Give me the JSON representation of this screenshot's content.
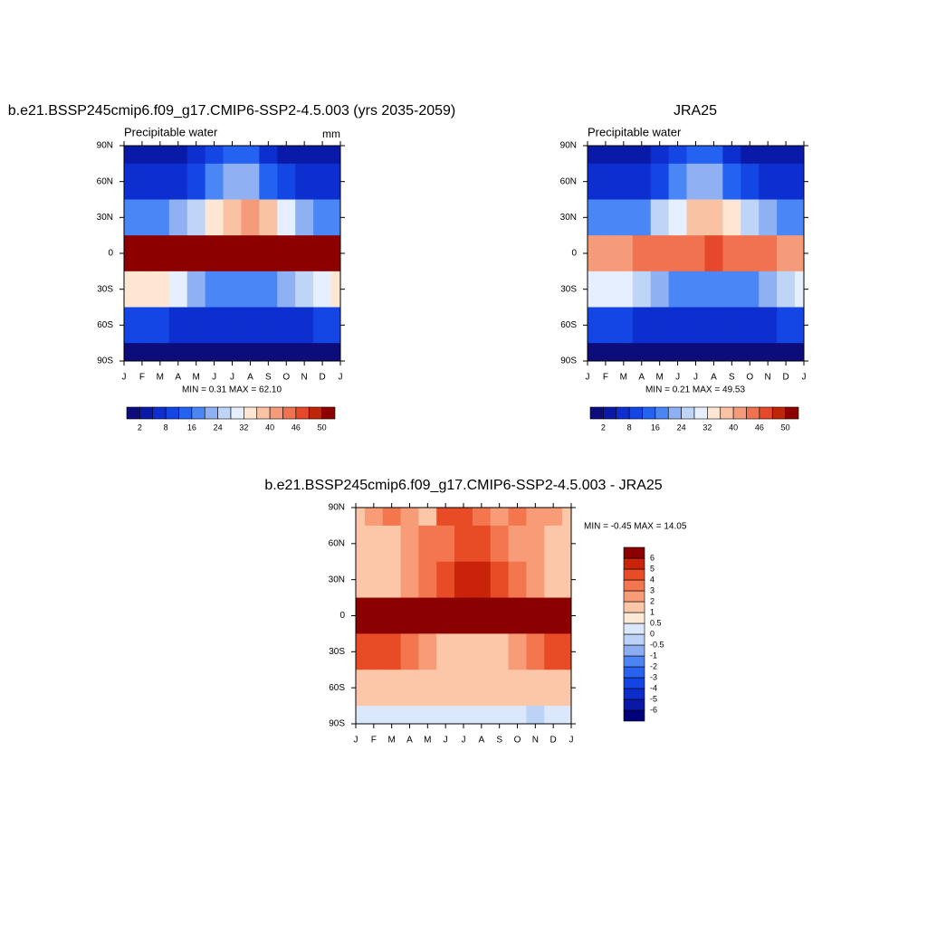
{
  "chart_data": [
    {
      "type": "contour",
      "title": "b.e21.BSSP245cmip6.f09_g17.CMIP6-SSP2-4.5.003 (yrs 2035-2059)",
      "subtitle": "Precipitable water",
      "units": "mm",
      "stats": "MIN =   0.31 MAX =  62.10",
      "categories": [
        "J",
        "F",
        "M",
        "A",
        "M",
        "J",
        "J",
        "A",
        "S",
        "O",
        "N",
        "D",
        "J"
      ],
      "ylim": [
        -90,
        90
      ],
      "yticks": [
        {
          "value": 90,
          "label": "90N"
        },
        {
          "value": 60,
          "label": "60N"
        },
        {
          "value": 30,
          "label": "30N"
        },
        0,
        {
          "value": -30,
          "label": "30S"
        },
        {
          "value": -60,
          "label": "60S"
        },
        {
          "value": -90,
          "label": "90S"
        }
      ],
      "y": [
        90,
        60,
        30,
        0,
        -30,
        -60,
        -90
      ],
      "z": [
        [
          2,
          2,
          2,
          3,
          5,
          9,
          13,
          12,
          7,
          4,
          3,
          2,
          2
        ],
        [
          5,
          5,
          6,
          7,
          11,
          17,
          22,
          20,
          14,
          9,
          7,
          5,
          5
        ],
        [
          18,
          17,
          18,
          20,
          25,
          32,
          38,
          40,
          36,
          28,
          22,
          19,
          18
        ],
        [
          50,
          50,
          50,
          50,
          52,
          55,
          57,
          57,
          55,
          53,
          51,
          50,
          50
        ],
        [
          34,
          35,
          33,
          28,
          23,
          19,
          17,
          17,
          18,
          21,
          26,
          31,
          34
        ],
        [
          9,
          9,
          8,
          7,
          6,
          5,
          5,
          5,
          5,
          6,
          7,
          8,
          9
        ],
        [
          1,
          1,
          1,
          1,
          0.5,
          0.5,
          0.5,
          0.5,
          0.5,
          1,
          1,
          1,
          1
        ]
      ],
      "colorbar": {
        "orientation": "horizontal",
        "colors": [
          "#0c0c7a",
          "#0a1aa8",
          "#0d2fd0",
          "#1446e6",
          "#2463f2",
          "#4a86f5",
          "#8fb1f3",
          "#bfd5f7",
          "#e6efff",
          "#fde6d2",
          "#f9c2a3",
          "#f59b7a",
          "#f07250",
          "#e5482a",
          "#c02509",
          "#8c0000"
        ],
        "labels": [
          2,
          8,
          16,
          24,
          32,
          40,
          46,
          50
        ]
      }
    },
    {
      "type": "contour",
      "title": "JRA25",
      "subtitle": "Precipitable water",
      "stats": "MIN =   0.21 MAX =  49.53",
      "categories": [
        "J",
        "F",
        "M",
        "A",
        "M",
        "J",
        "J",
        "A",
        "S",
        "O",
        "N",
        "D",
        "J"
      ],
      "ylim": [
        -90,
        90
      ],
      "yticks": [
        {
          "value": 90,
          "label": "90N"
        },
        {
          "value": 60,
          "label": "60N"
        },
        {
          "value": 30,
          "label": "30N"
        },
        0,
        {
          "value": -30,
          "label": "30S"
        },
        {
          "value": -60,
          "label": "60S"
        },
        {
          "value": -90,
          "label": "90S"
        }
      ],
      "y": [
        90,
        60,
        30,
        0,
        -30,
        -60,
        -90
      ],
      "z": [
        [
          2,
          2,
          2,
          3,
          5,
          9,
          14,
          12,
          7,
          4,
          3,
          2,
          2
        ],
        [
          5,
          5,
          5,
          7,
          11,
          17,
          22,
          20,
          14,
          9,
          6,
          5,
          5
        ],
        [
          17,
          16,
          17,
          19,
          24,
          31,
          37,
          38,
          34,
          27,
          21,
          18,
          17
        ],
        [
          42,
          42,
          42,
          43,
          44,
          44,
          45,
          46,
          45,
          44,
          43,
          42,
          42
        ],
        [
          30,
          30,
          28,
          25,
          21,
          18,
          16,
          16,
          17,
          19,
          23,
          27,
          30
        ],
        [
          9,
          9,
          8,
          7,
          6,
          5,
          5,
          5,
          5,
          6,
          7,
          8,
          9
        ],
        [
          1,
          1,
          1,
          1,
          0.5,
          0.5,
          0.5,
          0.5,
          0.5,
          1,
          1,
          1,
          1
        ]
      ],
      "colorbar": {
        "orientation": "horizontal",
        "colors": [
          "#0c0c7a",
          "#0a1aa8",
          "#0d2fd0",
          "#1446e6",
          "#2463f2",
          "#4a86f5",
          "#8fb1f3",
          "#bfd5f7",
          "#e6efff",
          "#fde6d2",
          "#f9c2a3",
          "#f59b7a",
          "#f07250",
          "#e5482a",
          "#c02509",
          "#8c0000"
        ],
        "labels": [
          2,
          8,
          16,
          24,
          32,
          40,
          46,
          50
        ]
      }
    },
    {
      "type": "contour",
      "title": "b.e21.BSSP245cmip6.f09_g17.CMIP6-SSP2-4.5.003 - JRA25",
      "stats": "MIN =  -0.45 MAX =  14.05",
      "categories": [
        "J",
        "F",
        "M",
        "A",
        "M",
        "J",
        "J",
        "A",
        "S",
        "O",
        "N",
        "D",
        "J"
      ],
      "ylim": [
        -90,
        90
      ],
      "yticks": [
        {
          "value": 90,
          "label": "90N"
        },
        {
          "value": 60,
          "label": "60N"
        },
        {
          "value": 30,
          "label": "30N"
        },
        0,
        {
          "value": -30,
          "label": "30S"
        },
        {
          "value": -60,
          "label": "60S"
        },
        {
          "value": -90,
          "label": "90S"
        }
      ],
      "y": [
        90,
        60,
        30,
        0,
        -30,
        -60,
        -90
      ],
      "z": [
        [
          1.5,
          2,
          3,
          2,
          1.5,
          4,
          4.5,
          3,
          2,
          3,
          2,
          2,
          1.5
        ],
        [
          1.5,
          1.5,
          1.5,
          2,
          3,
          3,
          4,
          4,
          3,
          2,
          2,
          1.5,
          1.5
        ],
        [
          1,
          1.5,
          1.5,
          2,
          3,
          4,
          5,
          5,
          4,
          3,
          2,
          1.5,
          1
        ],
        [
          8,
          8,
          8,
          8,
          8,
          10,
          12,
          12,
          10,
          8,
          8,
          8,
          8
        ],
        [
          4,
          4,
          4,
          3,
          2,
          1.5,
          1.5,
          1.5,
          1.5,
          2,
          3,
          4,
          4
        ],
        [
          1.5,
          1.5,
          1.5,
          1.5,
          1.5,
          1.5,
          1.5,
          1.5,
          1.5,
          1.5,
          1.5,
          1.5,
          1.5
        ],
        [
          0.3,
          0.3,
          0.3,
          0.3,
          0.3,
          0.3,
          0.3,
          0.3,
          0.3,
          0.3,
          -0.2,
          0.3,
          0.3
        ]
      ],
      "colorbar": {
        "orientation": "vertical",
        "colors": [
          "#00007a",
          "#0a18a6",
          "#0c2ccb",
          "#1444e3",
          "#2a62f0",
          "#4d84f4",
          "#8dadf3",
          "#bcd2f7",
          "#dbe8fb",
          "#fde9d6",
          "#fbc7a8",
          "#f79c76",
          "#f3764e",
          "#e84c26",
          "#c9230a",
          "#8b0000"
        ],
        "labels": [
          -6,
          -5,
          -4,
          -3,
          -2,
          -1,
          -0.5,
          0,
          0.5,
          1,
          2,
          3,
          4,
          5,
          6
        ]
      }
    }
  ]
}
